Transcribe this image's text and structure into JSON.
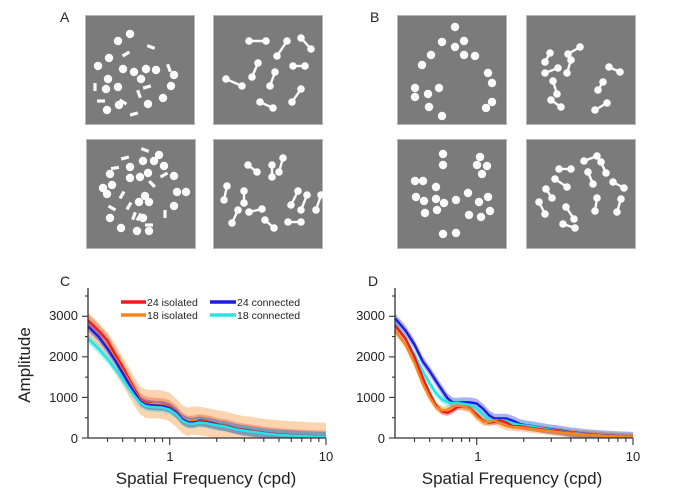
{
  "panels": {
    "A": {
      "label": "A"
    },
    "B": {
      "label": "B"
    },
    "C": {
      "label": "C"
    },
    "D": {
      "label": "D"
    }
  },
  "stimuli": {
    "A": [
      {
        "name": "a-isolated-24",
        "dots": [
          [
            32,
            25
          ],
          [
            44,
            18
          ],
          [
            23,
            42
          ],
          [
            12,
            50
          ],
          [
            37,
            53
          ],
          [
            48,
            56
          ],
          [
            60,
            53
          ],
          [
            70,
            54
          ],
          [
            22,
            63
          ],
          [
            55,
            63
          ],
          [
            88,
            59
          ],
          [
            20,
            73
          ],
          [
            32,
            71
          ],
          [
            85,
            70
          ],
          [
            77,
            82
          ],
          [
            62,
            88
          ],
          [
            33,
            89
          ],
          [
            21,
            94
          ]
        ],
        "bars": [
          [
            65,
            31,
            20
          ],
          [
            40,
            38,
            -30
          ],
          [
            83,
            52,
            70
          ],
          [
            61,
            71,
            -15
          ],
          [
            9,
            71,
            90
          ],
          [
            53,
            78,
            70
          ],
          [
            15,
            85,
            0
          ],
          [
            37,
            86,
            30
          ],
          [
            48,
            98,
            -15
          ]
        ]
      },
      {
        "name": "a-connected-24",
        "dumbbells": [
          [
            35,
            25,
            52,
            25
          ],
          [
            73,
            25,
            63,
            40
          ],
          [
            87,
            22,
            97,
            33
          ],
          [
            44,
            47,
            38,
            61
          ],
          [
            79,
            50,
            91,
            50
          ],
          [
            61,
            56,
            56,
            70
          ],
          [
            12,
            63,
            28,
            70
          ],
          [
            87,
            73,
            78,
            86
          ],
          [
            46,
            86,
            59,
            92
          ]
        ]
      },
      {
        "name": "a-isolated-18",
        "dots": [
          [
            72,
            15
          ],
          [
            56,
            21
          ],
          [
            67,
            21
          ],
          [
            77,
            26
          ],
          [
            43,
            27
          ],
          [
            23,
            34
          ],
          [
            43,
            38
          ],
          [
            53,
            37
          ],
          [
            61,
            33
          ],
          [
            87,
            36
          ],
          [
            16,
            48
          ],
          [
            25,
            45
          ],
          [
            20,
            54
          ],
          [
            90,
            52
          ],
          [
            99,
            52
          ],
          [
            58,
            56
          ],
          [
            52,
            62
          ],
          [
            62,
            62
          ],
          [
            87,
            66
          ],
          [
            23,
            78
          ],
          [
            56,
            78
          ],
          [
            34,
            88
          ],
          [
            50,
            91
          ],
          [
            62,
            91
          ]
        ],
        "bars": [
          [
            58,
            10,
            20
          ],
          [
            38,
            18,
            -15
          ],
          [
            28,
            28,
            -10
          ],
          [
            77,
            35,
            -30
          ],
          [
            65,
            44,
            45
          ],
          [
            35,
            55,
            -60
          ],
          [
            42,
            66,
            -60
          ],
          [
            25,
            68,
            30
          ],
          [
            47,
            76,
            -70
          ],
          [
            52,
            77,
            -60
          ],
          [
            78,
            74,
            90
          ],
          [
            62,
            85,
            0
          ]
        ]
      },
      {
        "name": "a-connected-18",
        "dumbbells": [
          [
            34,
            25,
            43,
            32
          ],
          [
            58,
            25,
            58,
            37
          ],
          [
            69,
            18,
            65,
            32
          ],
          [
            13,
            46,
            10,
            60
          ],
          [
            30,
            51,
            30,
            63
          ],
          [
            35,
            72,
            48,
            69
          ],
          [
            24,
            70,
            18,
            83
          ],
          [
            84,
            51,
            77,
            65
          ],
          [
            93,
            55,
            87,
            70
          ],
          [
            107,
            55,
            102,
            70
          ],
          [
            51,
            80,
            60,
            88
          ],
          [
            74,
            82,
            87,
            82
          ]
        ]
      }
    ],
    "B": [
      {
        "name": "b-isolated-24",
        "dots": [
          [
            57,
            11
          ],
          [
            44,
            26
          ],
          [
            57,
            31
          ],
          [
            66,
            25
          ],
          [
            66,
            39
          ],
          [
            77,
            40
          ],
          [
            33,
            39
          ],
          [
            24,
            49
          ],
          [
            90,
            57
          ],
          [
            94,
            67
          ],
          [
            17,
            72
          ],
          [
            41,
            72
          ],
          [
            17,
            81
          ],
          [
            30,
            78
          ],
          [
            94,
            86
          ],
          [
            31,
            91
          ],
          [
            88,
            92
          ],
          [
            44,
            100
          ]
        ]
      },
      {
        "name": "b-connected-24",
        "dumbbells": [
          [
            23,
            37,
            18,
            46
          ],
          [
            41,
            38,
            53,
            31
          ],
          [
            18,
            57,
            31,
            52
          ],
          [
            44,
            44,
            40,
            57
          ],
          [
            82,
            51,
            93,
            56
          ],
          [
            26,
            65,
            30,
            78
          ],
          [
            71,
            74,
            76,
            66
          ],
          [
            24,
            84,
            34,
            91
          ],
          [
            68,
            94,
            80,
            87
          ]
        ]
      },
      {
        "name": "b-isolated-18",
        "dots": [
          [
            45,
            14
          ],
          [
            45,
            25
          ],
          [
            82,
            17
          ],
          [
            79,
            25
          ],
          [
            89,
            26
          ],
          [
            84,
            34
          ],
          [
            17,
            41
          ],
          [
            25,
            41
          ],
          [
            38,
            47
          ],
          [
            18,
            57
          ],
          [
            26,
            61
          ],
          [
            38,
            59
          ],
          [
            46,
            63
          ],
          [
            58,
            60
          ],
          [
            70,
            53
          ],
          [
            81,
            62
          ],
          [
            90,
            57
          ],
          [
            92,
            71
          ],
          [
            27,
            73
          ],
          [
            39,
            70
          ],
          [
            71,
            75
          ],
          [
            83,
            77
          ],
          [
            45,
            94
          ],
          [
            58,
            93
          ]
        ]
      },
      {
        "name": "b-connected-18",
        "dumbbells": [
          [
            57,
            21,
            70,
            16
          ],
          [
            32,
            29,
            44,
            29
          ],
          [
            74,
            22,
            79,
            33
          ],
          [
            61,
            32,
            66,
            44
          ],
          [
            28,
            39,
            40,
            47
          ],
          [
            19,
            49,
            25,
            58
          ],
          [
            86,
            42,
            97,
            48
          ],
          [
            12,
            62,
            18,
            74
          ],
          [
            70,
            58,
            68,
            71
          ],
          [
            94,
            59,
            90,
            72
          ],
          [
            39,
            67,
            47,
            79
          ],
          [
            48,
            88,
            36,
            84
          ]
        ]
      }
    ]
  },
  "chart_data": [
    {
      "panel": "C",
      "type": "line",
      "title": "",
      "xlabel": "Spatial Frequency (cpd)",
      "ylabel": "Amplitude",
      "xscale": "log",
      "xlim": [
        0.3,
        10
      ],
      "ylim": [
        0,
        3500
      ],
      "xticks": [
        1,
        10
      ],
      "xtick_labels": [
        "1",
        "10"
      ],
      "yticks": [
        0,
        1000,
        2000,
        3000
      ],
      "ytick_labels": [
        "0",
        "1000",
        "2000",
        "3000"
      ],
      "legend": {
        "placement": "top-right",
        "columns": 2
      },
      "x": [
        0.3,
        0.35,
        0.4,
        0.45,
        0.5,
        0.55,
        0.6,
        0.65,
        0.7,
        0.75,
        0.8,
        0.9,
        1.0,
        1.1,
        1.2,
        1.3,
        1.4,
        1.55,
        1.7,
        1.9,
        2.1,
        2.3,
        2.6,
        2.9,
        3.2,
        3.6,
        4.0,
        4.5,
        5.0,
        6.0,
        7.0,
        8.0,
        10.0
      ],
      "series": [
        {
          "name": "24 isolated",
          "color": "#ee1c1c",
          "band": 150,
          "values": [
            2900,
            2650,
            2400,
            2050,
            1750,
            1450,
            1180,
            950,
            880,
            850,
            840,
            830,
            780,
            650,
            480,
            400,
            400,
            440,
            420,
            370,
            330,
            310,
            250,
            210,
            190,
            160,
            130,
            110,
            90,
            70,
            55,
            45,
            30
          ]
        },
        {
          "name": "18 isolated",
          "color": "#f7861c",
          "band": 350,
          "values": [
            2750,
            2500,
            2250,
            1950,
            1650,
            1380,
            1120,
            920,
            850,
            830,
            840,
            820,
            760,
            620,
            470,
            400,
            430,
            420,
            400,
            350,
            320,
            300,
            240,
            200,
            180,
            150,
            120,
            100,
            85,
            65,
            50,
            40,
            28
          ]
        },
        {
          "name": "24 connected",
          "color": "#1c1ce6",
          "band": 120,
          "values": [
            2750,
            2500,
            2200,
            1900,
            1600,
            1330,
            1100,
            900,
            830,
            810,
            800,
            790,
            740,
            620,
            460,
            390,
            380,
            410,
            390,
            350,
            310,
            290,
            230,
            200,
            175,
            145,
            120,
            100,
            85,
            65,
            50,
            40,
            28
          ]
        },
        {
          "name": "18 connected",
          "color": "#22e5e5",
          "band": 120,
          "values": [
            2450,
            2200,
            1950,
            1700,
            1450,
            1220,
            1020,
            860,
            790,
            770,
            760,
            750,
            700,
            590,
            430,
            360,
            350,
            380,
            370,
            330,
            300,
            280,
            220,
            190,
            165,
            140,
            115,
            95,
            80,
            60,
            48,
            38,
            25
          ]
        }
      ]
    },
    {
      "panel": "D",
      "type": "line",
      "title": "",
      "xlabel": "Spatial Frequency (cpd)",
      "ylabel": "",
      "xscale": "log",
      "xlim": [
        0.3,
        10
      ],
      "ylim": [
        0,
        3500
      ],
      "xticks": [
        1,
        10
      ],
      "xtick_labels": [
        "1",
        "10"
      ],
      "yticks": [
        0,
        1000,
        2000,
        3000
      ],
      "ytick_labels": [
        "0",
        "1000",
        "2000",
        "3000"
      ],
      "x": [
        0.3,
        0.35,
        0.4,
        0.45,
        0.5,
        0.55,
        0.6,
        0.65,
        0.7,
        0.75,
        0.8,
        0.9,
        1.0,
        1.1,
        1.2,
        1.3,
        1.4,
        1.55,
        1.7,
        1.9,
        2.1,
        2.3,
        2.6,
        2.9,
        3.2,
        3.6,
        4.0,
        4.5,
        5.0,
        6.0,
        7.0,
        8.0,
        10.0
      ],
      "series": [
        {
          "name": "24 connected",
          "color": "#1c1ce6",
          "band": 120,
          "values": [
            2950,
            2650,
            2300,
            1900,
            1650,
            1400,
            1180,
            980,
            880,
            870,
            880,
            880,
            850,
            720,
            560,
            480,
            480,
            480,
            430,
            340,
            310,
            290,
            250,
            220,
            200,
            170,
            140,
            120,
            100,
            75,
            58,
            45,
            30
          ]
        },
        {
          "name": "18 connected",
          "color": "#22e5e5",
          "band": 100,
          "values": [
            2800,
            2450,
            2050,
            1650,
            1350,
            1100,
            950,
            880,
            860,
            860,
            850,
            820,
            720,
            560,
            450,
            430,
            440,
            420,
            360,
            320,
            300,
            280,
            240,
            210,
            185,
            155,
            130,
            110,
            90,
            70,
            52,
            42,
            28
          ]
        },
        {
          "name": "24 isolated",
          "color": "#ee1c1c",
          "band": 80,
          "values": [
            2780,
            2450,
            2000,
            1500,
            1100,
            800,
            650,
            620,
            680,
            760,
            780,
            740,
            580,
            420,
            380,
            400,
            440,
            380,
            290,
            290,
            260,
            240,
            210,
            190,
            170,
            145,
            120,
            100,
            85,
            65,
            50,
            40,
            25
          ]
        },
        {
          "name": "18 isolated",
          "color": "#f7861c",
          "band": 100,
          "values": [
            2650,
            2300,
            1850,
            1350,
            1000,
            760,
            680,
            700,
            770,
            800,
            790,
            720,
            520,
            400,
            400,
            430,
            360,
            290,
            270,
            260,
            240,
            220,
            190,
            170,
            150,
            130,
            110,
            95,
            80,
            60,
            46,
            36,
            24
          ]
        }
      ]
    }
  ]
}
